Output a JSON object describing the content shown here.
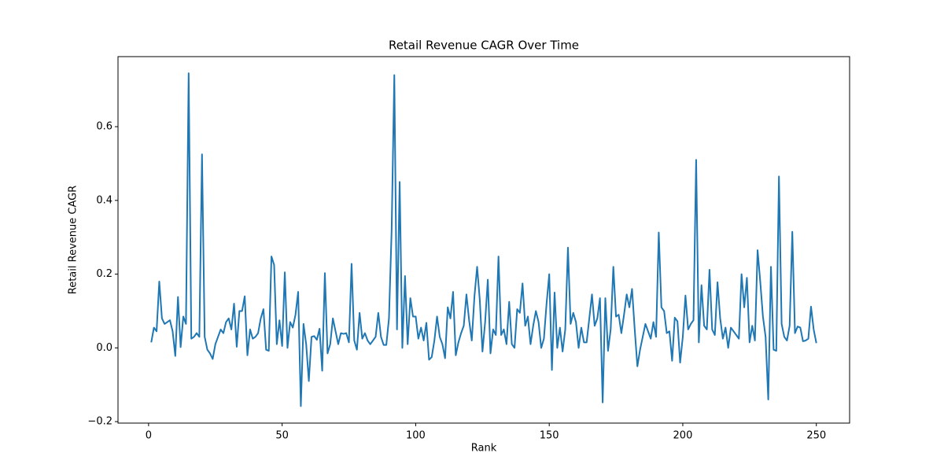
{
  "chart_data": {
    "type": "line",
    "title": "Retail Revenue CAGR Over Time",
    "xlabel": "Rank",
    "ylabel": "Retail Revenue CAGR",
    "color": "#1f77b4",
    "x": [
      1,
      2,
      3,
      4,
      5,
      6,
      7,
      8,
      9,
      10,
      11,
      12,
      13,
      14,
      15,
      16,
      17,
      18,
      19,
      20,
      21,
      22,
      23,
      24,
      25,
      26,
      27,
      28,
      29,
      30,
      31,
      32,
      33,
      34,
      35,
      36,
      37,
      38,
      39,
      40,
      41,
      42,
      43,
      44,
      45,
      46,
      47,
      48,
      49,
      50,
      51,
      52,
      53,
      54,
      55,
      56,
      57,
      58,
      59,
      60,
      61,
      62,
      63,
      64,
      65,
      66,
      67,
      68,
      69,
      70,
      71,
      72,
      73,
      74,
      75,
      76,
      77,
      78,
      79,
      80,
      81,
      82,
      83,
      84,
      85,
      86,
      87,
      88,
      89,
      90,
      91,
      92,
      93,
      94,
      95,
      96,
      97,
      98,
      99,
      100,
      101,
      102,
      103,
      104,
      105,
      106,
      107,
      108,
      109,
      110,
      111,
      112,
      113,
      114,
      115,
      116,
      117,
      118,
      119,
      120,
      121,
      122,
      123,
      124,
      125,
      126,
      127,
      128,
      129,
      130,
      131,
      132,
      133,
      134,
      135,
      136,
      137,
      138,
      139,
      140,
      141,
      142,
      143,
      144,
      145,
      146,
      147,
      148,
      149,
      150,
      151,
      152,
      153,
      154,
      155,
      156,
      157,
      158,
      159,
      160,
      161,
      162,
      163,
      164,
      165,
      166,
      167,
      168,
      169,
      170,
      171,
      172,
      173,
      174,
      175,
      176,
      177,
      178,
      179,
      180,
      181,
      182,
      183,
      184,
      185,
      186,
      187,
      188,
      189,
      190,
      191,
      192,
      193,
      194,
      195,
      196,
      197,
      198,
      199,
      200,
      201,
      202,
      203,
      204,
      205,
      206,
      207,
      208,
      209,
      210,
      211,
      212,
      213,
      214,
      215,
      216,
      217,
      218,
      219,
      220,
      221,
      222,
      223,
      224,
      225,
      226,
      227,
      228,
      229,
      230,
      231,
      232,
      233,
      234,
      235,
      236,
      237,
      238,
      239,
      240,
      241,
      242,
      243,
      244,
      245,
      246,
      247,
      248,
      249,
      250
    ],
    "values": [
      0.015,
      0.055,
      0.045,
      0.18,
      0.08,
      0.065,
      0.07,
      0.075,
      0.045,
      -0.022,
      0.138,
      0.002,
      0.085,
      0.065,
      0.745,
      0.025,
      0.03,
      0.04,
      0.03,
      0.525,
      0.03,
      -0.005,
      -0.015,
      -0.03,
      0.01,
      0.03,
      0.05,
      0.04,
      0.07,
      0.08,
      0.05,
      0.12,
      0.003,
      0.1,
      0.1,
      0.14,
      -0.02,
      0.05,
      0.025,
      0.03,
      0.04,
      0.08,
      0.105,
      -0.005,
      -0.008,
      0.248,
      0.225,
      0.01,
      0.075,
      0.005,
      0.205,
      0.0,
      0.07,
      0.055,
      0.09,
      0.152,
      -0.158,
      0.065,
      0.01,
      -0.09,
      0.03,
      0.032,
      0.022,
      0.052,
      -0.062,
      0.203,
      -0.015,
      0.01,
      0.08,
      0.045,
      0.01,
      0.04,
      0.038,
      0.04,
      0.015,
      0.228,
      0.02,
      -0.005,
      0.095,
      0.025,
      0.04,
      0.02,
      0.01,
      0.02,
      0.03,
      0.095,
      0.03,
      0.008,
      0.008,
      0.08,
      0.32,
      0.74,
      0.05,
      0.45,
      0.0,
      0.195,
      0.01,
      0.135,
      0.085,
      0.085,
      0.025,
      0.055,
      0.02,
      0.068,
      -0.032,
      -0.025,
      0.02,
      0.085,
      0.03,
      0.01,
      -0.028,
      0.11,
      0.08,
      0.152,
      -0.02,
      0.015,
      0.04,
      0.06,
      0.145,
      0.075,
      0.02,
      0.14,
      0.22,
      0.13,
      -0.01,
      0.07,
      0.185,
      -0.015,
      0.05,
      0.035,
      0.248,
      0.035,
      0.05,
      0.01,
      0.125,
      0.01,
      0.0,
      0.105,
      0.095,
      0.175,
      0.06,
      0.085,
      0.01,
      0.06,
      0.1,
      0.07,
      0.0,
      0.025,
      0.12,
      0.2,
      -0.06,
      0.15,
      0.0,
      0.055,
      -0.01,
      0.05,
      0.272,
      0.065,
      0.095,
      0.07,
      0.0,
      0.055,
      0.015,
      0.015,
      0.08,
      0.145,
      0.06,
      0.08,
      0.135,
      -0.148,
      0.135,
      -0.008,
      0.05,
      0.22,
      0.085,
      0.09,
      0.04,
      0.09,
      0.145,
      0.11,
      0.16,
      0.05,
      -0.05,
      -0.005,
      0.03,
      0.065,
      0.045,
      0.025,
      0.07,
      0.03,
      0.313,
      0.11,
      0.1,
      0.04,
      0.045,
      -0.035,
      0.082,
      0.072,
      -0.04,
      0.03,
      0.142,
      0.05,
      0.065,
      0.075,
      0.51,
      0.015,
      0.17,
      0.06,
      0.05,
      0.212,
      0.05,
      0.035,
      0.178,
      0.08,
      0.025,
      0.055,
      0.0,
      0.055,
      0.045,
      0.035,
      0.025,
      0.2,
      0.11,
      0.19,
      0.015,
      0.06,
      0.02,
      0.265,
      0.18,
      0.085,
      0.03,
      -0.14,
      0.22,
      -0.005,
      -0.008,
      0.465,
      0.065,
      0.03,
      0.02,
      0.06,
      0.315,
      0.04,
      0.058,
      0.055,
      0.018,
      0.02,
      0.025,
      0.112,
      0.05,
      0.013
    ],
    "xlim": [
      -11.45,
      262.45
    ],
    "xticks": [
      0,
      50,
      100,
      150,
      200,
      250
    ],
    "ylim": [
      -0.204,
      0.79
    ],
    "yticks": [
      {
        "value": -0.2,
        "label": "−0.2"
      },
      {
        "value": 0,
        "label": "0.0"
      },
      0.2,
      0.4,
      0.6
    ]
  }
}
